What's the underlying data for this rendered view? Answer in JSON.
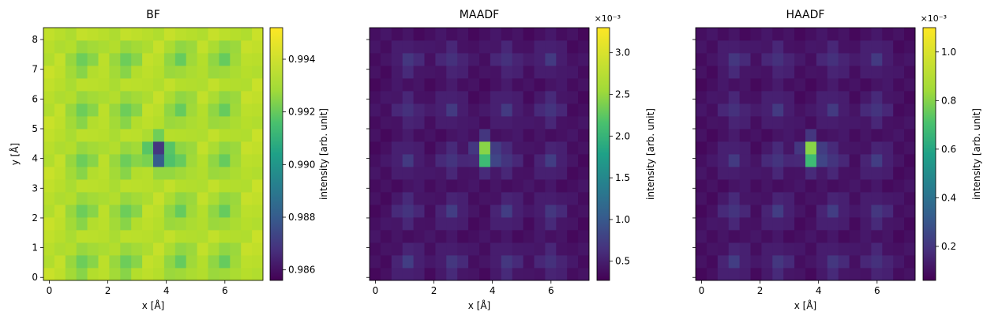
{
  "chart_data": [
    {
      "type": "heatmap",
      "title": "BF",
      "xlabel": "x [Å]",
      "ylabel": "y [Å]",
      "x_extent": [
        -0.2,
        7.3
      ],
      "y_extent": [
        -0.1,
        8.4
      ],
      "xticks": [
        0,
        2,
        4,
        6
      ],
      "xtick_labels": [
        "0",
        "2",
        "4",
        "6"
      ],
      "yticks": [
        0,
        1,
        2,
        3,
        4,
        5,
        6,
        7,
        8
      ],
      "ytick_labels": [
        "0",
        "1",
        "2",
        "3",
        "4",
        "5",
        "6",
        "7",
        "8"
      ],
      "colorbar": {
        "label": "intensity [arb. unit]",
        "range": [
          0.9856,
          0.9952
        ],
        "ticks": [
          0.986,
          0.988,
          0.99,
          0.992,
          0.994
        ],
        "tick_labels": [
          "0.986",
          "0.988",
          "0.990",
          "0.992",
          "0.994"
        ],
        "offset_text": ""
      },
      "z_min": 0.9856,
      "z_max": 0.9952
    },
    {
      "type": "heatmap",
      "title": "MAADF",
      "xlabel": "x [Å]",
      "ylabel": "",
      "x_extent": [
        -0.2,
        7.3
      ],
      "y_extent": [
        -0.1,
        8.4
      ],
      "xticks": [
        0,
        2,
        4,
        6
      ],
      "xtick_labels": [
        "0",
        "2",
        "4",
        "6"
      ],
      "yticks": [
        0,
        1,
        2,
        3,
        4,
        5,
        6,
        7,
        8
      ],
      "ytick_labels": [],
      "colorbar": {
        "label": "intensity [arb. unit]",
        "range": [
          0.27,
          3.3
        ],
        "ticks": [
          0.5,
          1.0,
          1.5,
          2.0,
          2.5,
          3.0
        ],
        "tick_labels": [
          "0.5",
          "1.0",
          "1.5",
          "2.0",
          "2.5",
          "3.0"
        ],
        "offset_text": "×10⁻³"
      },
      "z_min": 0.27,
      "z_max": 3.3
    },
    {
      "type": "heatmap",
      "title": "HAADF",
      "xlabel": "x [Å]",
      "ylabel": "",
      "x_extent": [
        -0.2,
        7.3
      ],
      "y_extent": [
        -0.1,
        8.4
      ],
      "xticks": [
        0,
        2,
        4,
        6
      ],
      "xtick_labels": [
        "0",
        "2",
        "4",
        "6"
      ],
      "yticks": [
        0,
        1,
        2,
        3,
        4,
        5,
        6,
        7,
        8
      ],
      "ytick_labels": [],
      "colorbar": {
        "label": "intensity [arb. unit]",
        "range": [
          0.06,
          1.1
        ],
        "ticks": [
          0.2,
          0.4,
          0.6,
          0.8,
          1.0
        ],
        "tick_labels": [
          "0.2",
          "0.4",
          "0.6",
          "0.8",
          "1.0"
        ],
        "offset_text": "×10⁻³"
      },
      "z_min": 0.06,
      "z_max": 1.1
    }
  ]
}
